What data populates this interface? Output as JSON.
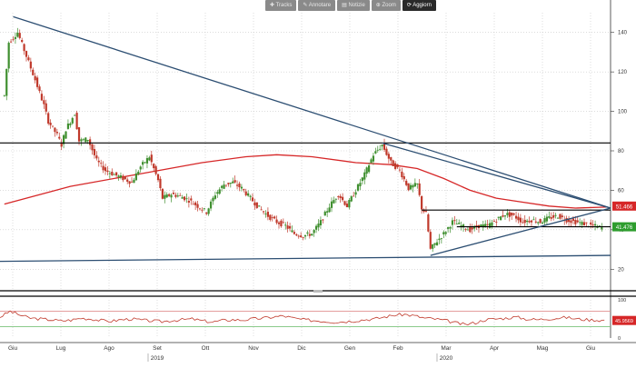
{
  "toolbar": {
    "items": [
      {
        "label": "Tracks",
        "icon": "plus-icon"
      },
      {
        "label": "Annotare",
        "icon": "pencil-icon"
      },
      {
        "label": "Notizie",
        "icon": "news-icon"
      },
      {
        "label": "Zoom",
        "icon": "zoom-icon"
      },
      {
        "label": "Aggiorn",
        "icon": "refresh-icon"
      }
    ]
  },
  "colors": {
    "background": "#ffffff",
    "grid": "#c8c8c8",
    "candle_up": "#3f8f2f",
    "candle_down": "#c0392b",
    "moving_average": "#d62728",
    "trendline": "#2c4e72",
    "horizontal_line": "#000000",
    "rsi_line": "#c0392b",
    "rsi_overbought": "#e09090",
    "rsi_oversold": "#7cc27c",
    "price_badge": "#d62728",
    "price_badge_green": "#2e9d2e"
  },
  "chart_data": [
    {
      "type": "candlestick",
      "x_tick_labels": [
        "Giu",
        "Lug",
        "Ago",
        "Set",
        "Ott",
        "Nov",
        "Dic",
        "Gen",
        "Feb",
        "Mar",
        "Apr",
        "Mag",
        "Giu"
      ],
      "year_labels": [
        {
          "label": "2019",
          "at": "Set"
        },
        {
          "label": "2020",
          "at": "Mar"
        }
      ],
      "y_tick_labels": [
        "140",
        "120",
        "100",
        "80",
        "60",
        "40",
        "20"
      ],
      "ylim": [
        10,
        150
      ],
      "price_labels": {
        "last_red": "51.466",
        "last_green": "41.476"
      },
      "close_series": [
        {
          "x": 0,
          "y": 108
        },
        {
          "x": 1,
          "y": 135
        },
        {
          "x": 3,
          "y": 140
        },
        {
          "x": 5,
          "y": 128
        },
        {
          "x": 7,
          "y": 116
        },
        {
          "x": 9,
          "y": 103
        },
        {
          "x": 10,
          "y": 95
        },
        {
          "x": 12,
          "y": 88
        },
        {
          "x": 13,
          "y": 83
        },
        {
          "x": 14,
          "y": 91
        },
        {
          "x": 16,
          "y": 99
        },
        {
          "x": 17,
          "y": 85
        },
        {
          "x": 19,
          "y": 86
        },
        {
          "x": 21,
          "y": 75
        },
        {
          "x": 23,
          "y": 70
        },
        {
          "x": 25,
          "y": 68
        },
        {
          "x": 27,
          "y": 66
        },
        {
          "x": 29,
          "y": 64
        },
        {
          "x": 31,
          "y": 72
        },
        {
          "x": 33,
          "y": 77
        },
        {
          "x": 35,
          "y": 65
        },
        {
          "x": 36,
          "y": 56
        },
        {
          "x": 38,
          "y": 58
        },
        {
          "x": 40,
          "y": 57
        },
        {
          "x": 42,
          "y": 55
        },
        {
          "x": 44,
          "y": 52
        },
        {
          "x": 46,
          "y": 49
        },
        {
          "x": 48,
          "y": 58
        },
        {
          "x": 50,
          "y": 63
        },
        {
          "x": 52,
          "y": 64
        },
        {
          "x": 54,
          "y": 61
        },
        {
          "x": 56,
          "y": 56
        },
        {
          "x": 58,
          "y": 51
        },
        {
          "x": 60,
          "y": 47
        },
        {
          "x": 62,
          "y": 44
        },
        {
          "x": 64,
          "y": 42
        },
        {
          "x": 66,
          "y": 38
        },
        {
          "x": 68,
          "y": 37
        },
        {
          "x": 70,
          "y": 38
        },
        {
          "x": 72,
          "y": 44
        },
        {
          "x": 74,
          "y": 52
        },
        {
          "x": 76,
          "y": 58
        },
        {
          "x": 78,
          "y": 52
        },
        {
          "x": 80,
          "y": 60
        },
        {
          "x": 82,
          "y": 68
        },
        {
          "x": 84,
          "y": 78
        },
        {
          "x": 86,
          "y": 83
        },
        {
          "x": 88,
          "y": 74
        },
        {
          "x": 90,
          "y": 70
        },
        {
          "x": 92,
          "y": 61
        },
        {
          "x": 94,
          "y": 63
        },
        {
          "x": 95,
          "y": 51
        },
        {
          "x": 96,
          "y": 48
        },
        {
          "x": 97,
          "y": 30
        },
        {
          "x": 98,
          "y": 33
        },
        {
          "x": 100,
          "y": 38
        },
        {
          "x": 102,
          "y": 44
        },
        {
          "x": 104,
          "y": 42
        },
        {
          "x": 106,
          "y": 40
        },
        {
          "x": 108,
          "y": 42
        },
        {
          "x": 110,
          "y": 42
        },
        {
          "x": 112,
          "y": 45
        },
        {
          "x": 114,
          "y": 48
        },
        {
          "x": 116,
          "y": 47
        },
        {
          "x": 118,
          "y": 44
        },
        {
          "x": 120,
          "y": 45
        },
        {
          "x": 122,
          "y": 44
        },
        {
          "x": 124,
          "y": 46
        },
        {
          "x": 126,
          "y": 47
        },
        {
          "x": 128,
          "y": 45
        },
        {
          "x": 130,
          "y": 44
        },
        {
          "x": 132,
          "y": 43
        },
        {
          "x": 134,
          "y": 42
        },
        {
          "x": 136,
          "y": 41
        }
      ],
      "moving_average": [
        {
          "x": 0,
          "y": 53
        },
        {
          "x": 15,
          "y": 62
        },
        {
          "x": 30,
          "y": 68
        },
        {
          "x": 45,
          "y": 74
        },
        {
          "x": 55,
          "y": 77
        },
        {
          "x": 62,
          "y": 78
        },
        {
          "x": 70,
          "y": 77
        },
        {
          "x": 80,
          "y": 74
        },
        {
          "x": 88,
          "y": 73
        },
        {
          "x": 94,
          "y": 71
        },
        {
          "x": 100,
          "y": 66
        },
        {
          "x": 106,
          "y": 60
        },
        {
          "x": 112,
          "y": 56
        },
        {
          "x": 118,
          "y": 54
        },
        {
          "x": 124,
          "y": 52
        },
        {
          "x": 130,
          "y": 51
        },
        {
          "x": 137,
          "y": 51.5
        }
      ],
      "trendlines": [
        {
          "from": {
            "x": 2,
            "y": 148
          },
          "to": {
            "x": 138,
            "y": 51
          }
        },
        {
          "from": {
            "x": 86,
            "y": 84
          },
          "to": {
            "x": 138,
            "y": 51
          }
        },
        {
          "from": {
            "x": -1,
            "y": 24
          },
          "to": {
            "x": 138,
            "y": 27
          }
        },
        {
          "from": {
            "x": 97,
            "y": 27
          },
          "to": {
            "x": 138,
            "y": 51
          }
        }
      ],
      "horizontal_lines": [
        {
          "y": 84,
          "from_x": -1,
          "to_x": 138
        },
        {
          "y": 50,
          "from_x": 95,
          "to_x": 138
        },
        {
          "y": 41.5,
          "from_x": 103,
          "to_x": 138
        }
      ]
    },
    {
      "type": "line",
      "name": "RSI",
      "y_tick_labels": [
        "100",
        "0"
      ],
      "ylim": [
        0,
        100
      ],
      "last_value_label": "45.9569",
      "overbought": 70,
      "oversold": 30,
      "values": [
        55,
        70,
        60,
        52,
        50,
        48,
        45,
        47,
        52,
        50,
        46,
        44,
        48,
        50,
        47,
        45,
        43,
        46,
        48,
        50,
        45,
        42,
        46,
        48,
        47,
        50,
        52,
        55,
        58,
        52,
        48,
        46,
        44,
        42,
        43,
        45,
        48,
        50,
        55,
        60,
        62,
        58,
        52,
        50,
        46,
        40,
        35,
        40,
        48,
        50,
        52,
        55,
        50,
        48,
        50,
        52,
        54,
        50,
        48,
        47,
        46
      ]
    }
  ]
}
